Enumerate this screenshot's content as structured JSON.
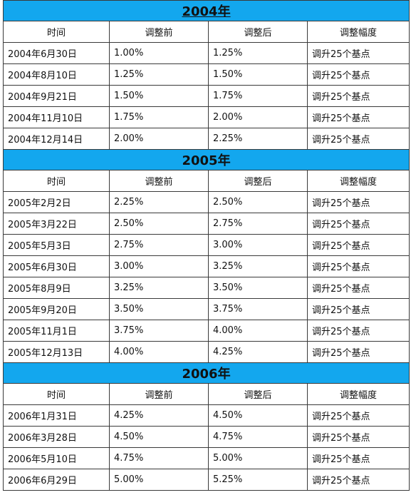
{
  "header": {
    "time": "时间",
    "before": "调整前",
    "after": "调整后",
    "change": "调整幅度"
  },
  "sections": [
    {
      "year": "2004年",
      "rows": [
        {
          "date": "2004年6月30日",
          "before": "1.00%",
          "after": "1.25%",
          "change": "调升25个基点"
        },
        {
          "date": "2004年8月10日",
          "before": "1.25%",
          "after": "1.50%",
          "change": "调升25个基点"
        },
        {
          "date": "2004年9月21日",
          "before": "1.50%",
          "after": "1.75%",
          "change": "调升25个基点"
        },
        {
          "date": "2004年11月10日",
          "before": "1.75%",
          "after": "2.00%",
          "change": "调升25个基点"
        },
        {
          "date": "2004年12月14日",
          "before": "2.00%",
          "after": "2.25%",
          "change": "调升25个基点"
        }
      ]
    },
    {
      "year": "2005年",
      "rows": [
        {
          "date": "2005年2月2日",
          "before": "2.25%",
          "after": "2.50%",
          "change": "调升25个基点"
        },
        {
          "date": "2005年3月22日",
          "before": "2.50%",
          "after": "2.75%",
          "change": "调升25个基点"
        },
        {
          "date": "2005年5月3日",
          "before": "2.75%",
          "after": "3.00%",
          "change": "调升25个基点"
        },
        {
          "date": "2005年6月30日",
          "before": "3.00%",
          "after": "3.25%",
          "change": "调升25个基点"
        },
        {
          "date": "2005年8月9日",
          "before": "3.25%",
          "after": "3.50%",
          "change": "调升25个基点"
        },
        {
          "date": "2005年9月20日",
          "before": "3.50%",
          "after": "3.75%",
          "change": "调升25个基点"
        },
        {
          "date": "2005年11月1日",
          "before": "3.75%",
          "after": "4.00%",
          "change": "调升25个基点"
        },
        {
          "date": "2005年12月13日",
          "before": "4.00%",
          "after": "4.25%",
          "change": "调升25个基点"
        }
      ]
    },
    {
      "year": "2006年",
      "rows": [
        {
          "date": "2006年1月31日",
          "before": "4.25%",
          "after": "4.50%",
          "change": "调升25个基点"
        },
        {
          "date": "2006年3月28日",
          "before": "4.50%",
          "after": "4.75%",
          "change": "调升25个基点"
        },
        {
          "date": "2006年5月10日",
          "before": "4.75%",
          "after": "5.00%",
          "change": "调升25个基点"
        },
        {
          "date": "2006年6月29日",
          "before": "5.00%",
          "after": "5.25%",
          "change": "调升25个基点"
        }
      ]
    }
  ]
}
